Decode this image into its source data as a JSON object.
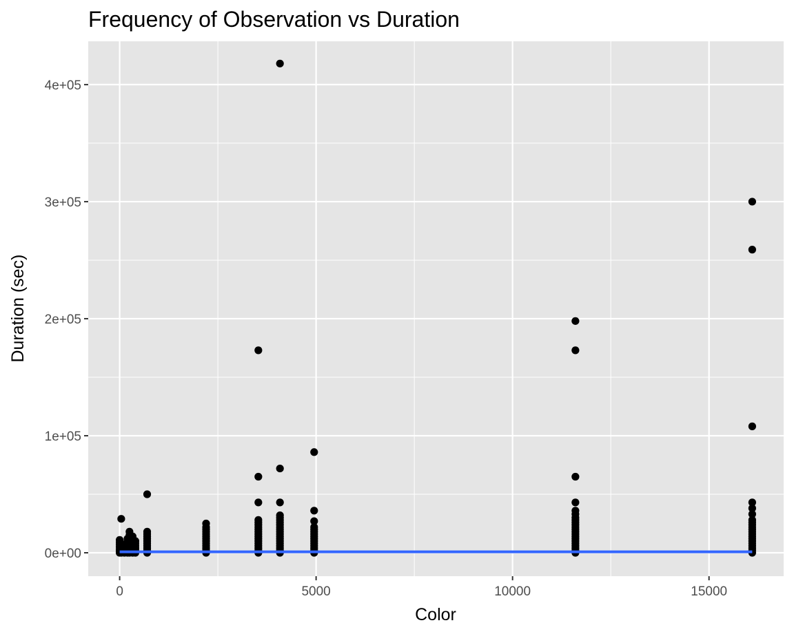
{
  "chart_data": {
    "type": "scatter",
    "title": "Frequency of Observation vs Duration",
    "xlabel": "Color",
    "ylabel": "Duration (sec)",
    "xlim": [
      -800,
      16900
    ],
    "ylim": [
      -20000,
      437000
    ],
    "x_ticks": [
      {
        "value": 0,
        "label": "0"
      },
      {
        "value": 5000,
        "label": "5000"
      },
      {
        "value": 10000,
        "label": "10000"
      },
      {
        "value": 15000,
        "label": "15000"
      }
    ],
    "y_ticks": [
      {
        "value": 0,
        "label": "0e+00"
      },
      {
        "value": 100000,
        "label": "1e+05"
      },
      {
        "value": 200000,
        "label": "2e+05"
      },
      {
        "value": 300000,
        "label": "3e+05"
      },
      {
        "value": 400000,
        "label": "4e+05"
      }
    ],
    "grid": true,
    "point_color": "#000000",
    "line_color": "#3366FF",
    "panel_color": "#E5E5E5",
    "grid_color": "#FFFFFF",
    "series": [
      {
        "kind": "points",
        "points": [
          [
            0,
            0
          ],
          [
            0,
            1500
          ],
          [
            0,
            3000
          ],
          [
            0,
            5000
          ],
          [
            0,
            7000
          ],
          [
            0,
            9000
          ],
          [
            0,
            11000
          ],
          [
            40,
            0
          ],
          [
            40,
            2000
          ],
          [
            40,
            4000
          ],
          [
            40,
            6000
          ],
          [
            40,
            29000
          ],
          [
            120,
            0
          ],
          [
            120,
            2000
          ],
          [
            120,
            4000
          ],
          [
            120,
            7000
          ],
          [
            200,
            0
          ],
          [
            200,
            1500
          ],
          [
            200,
            3500
          ],
          [
            200,
            5500
          ],
          [
            200,
            8000
          ],
          [
            200,
            10000
          ],
          [
            200,
            12000
          ],
          [
            250,
            0
          ],
          [
            250,
            3000
          ],
          [
            250,
            6000
          ],
          [
            250,
            9000
          ],
          [
            250,
            13000
          ],
          [
            250,
            15000
          ],
          [
            250,
            18000
          ],
          [
            330,
            0
          ],
          [
            330,
            2500
          ],
          [
            330,
            5000
          ],
          [
            330,
            8000
          ],
          [
            330,
            11000
          ],
          [
            330,
            14000
          ],
          [
            400,
            0
          ],
          [
            400,
            2000
          ],
          [
            400,
            4000
          ],
          [
            400,
            6000
          ],
          [
            400,
            8000
          ],
          [
            400,
            10000
          ],
          [
            700,
            0
          ],
          [
            700,
            2000
          ],
          [
            700,
            4000
          ],
          [
            700,
            6000
          ],
          [
            700,
            8000
          ],
          [
            700,
            10000
          ],
          [
            700,
            12000
          ],
          [
            700,
            14000
          ],
          [
            700,
            16000
          ],
          [
            700,
            18000
          ],
          [
            700,
            50000
          ],
          [
            2200,
            0
          ],
          [
            2200,
            2000
          ],
          [
            2200,
            4000
          ],
          [
            2200,
            6000
          ],
          [
            2200,
            8000
          ],
          [
            2200,
            10000
          ],
          [
            2200,
            12000
          ],
          [
            2200,
            14000
          ],
          [
            2200,
            16000
          ],
          [
            2200,
            18000
          ],
          [
            2200,
            20000
          ],
          [
            2200,
            22000
          ],
          [
            2200,
            25000
          ],
          [
            3530,
            0
          ],
          [
            3530,
            2000
          ],
          [
            3530,
            4000
          ],
          [
            3530,
            6000
          ],
          [
            3530,
            8000
          ],
          [
            3530,
            10000
          ],
          [
            3530,
            12000
          ],
          [
            3530,
            14000
          ],
          [
            3530,
            16000
          ],
          [
            3530,
            18000
          ],
          [
            3530,
            20000
          ],
          [
            3530,
            22000
          ],
          [
            3530,
            24000
          ],
          [
            3530,
            26000
          ],
          [
            3530,
            28000
          ],
          [
            3530,
            43000
          ],
          [
            3530,
            65000
          ],
          [
            3530,
            173000
          ],
          [
            4080,
            0
          ],
          [
            4080,
            2000
          ],
          [
            4080,
            4000
          ],
          [
            4080,
            6000
          ],
          [
            4080,
            8000
          ],
          [
            4080,
            10000
          ],
          [
            4080,
            12000
          ],
          [
            4080,
            14000
          ],
          [
            4080,
            16000
          ],
          [
            4080,
            18000
          ],
          [
            4080,
            20000
          ],
          [
            4080,
            22000
          ],
          [
            4080,
            24000
          ],
          [
            4080,
            26000
          ],
          [
            4080,
            28000
          ],
          [
            4080,
            30000
          ],
          [
            4080,
            32000
          ],
          [
            4080,
            43000
          ],
          [
            4080,
            72000
          ],
          [
            4080,
            418000
          ],
          [
            4950,
            0
          ],
          [
            4950,
            2000
          ],
          [
            4950,
            4000
          ],
          [
            4950,
            6000
          ],
          [
            4950,
            8000
          ],
          [
            4950,
            10000
          ],
          [
            4950,
            12000
          ],
          [
            4950,
            14000
          ],
          [
            4950,
            16000
          ],
          [
            4950,
            18000
          ],
          [
            4950,
            20000
          ],
          [
            4950,
            22000
          ],
          [
            4950,
            27000
          ],
          [
            4950,
            36000
          ],
          [
            4950,
            86000
          ],
          [
            11600,
            0
          ],
          [
            11600,
            2000
          ],
          [
            11600,
            4000
          ],
          [
            11600,
            6000
          ],
          [
            11600,
            8000
          ],
          [
            11600,
            10000
          ],
          [
            11600,
            12000
          ],
          [
            11600,
            14000
          ],
          [
            11600,
            16000
          ],
          [
            11600,
            18000
          ],
          [
            11600,
            20000
          ],
          [
            11600,
            22000
          ],
          [
            11600,
            24000
          ],
          [
            11600,
            26000
          ],
          [
            11600,
            28000
          ],
          [
            11600,
            30000
          ],
          [
            11600,
            33000
          ],
          [
            11600,
            36000
          ],
          [
            11600,
            43000
          ],
          [
            11600,
            65000
          ],
          [
            11600,
            173000
          ],
          [
            11600,
            198000
          ],
          [
            16100,
            0
          ],
          [
            16100,
            2000
          ],
          [
            16100,
            4000
          ],
          [
            16100,
            6000
          ],
          [
            16100,
            8000
          ],
          [
            16100,
            10000
          ],
          [
            16100,
            12000
          ],
          [
            16100,
            14000
          ],
          [
            16100,
            16000
          ],
          [
            16100,
            18000
          ],
          [
            16100,
            20000
          ],
          [
            16100,
            22000
          ],
          [
            16100,
            24000
          ],
          [
            16100,
            26000
          ],
          [
            16100,
            28000
          ],
          [
            16100,
            33000
          ],
          [
            16100,
            38000
          ],
          [
            16100,
            43000
          ],
          [
            16100,
            108000
          ],
          [
            16100,
            259000
          ],
          [
            16100,
            300000
          ]
        ]
      },
      {
        "kind": "line",
        "points": [
          [
            0,
            800
          ],
          [
            16100,
            800
          ]
        ]
      }
    ]
  }
}
